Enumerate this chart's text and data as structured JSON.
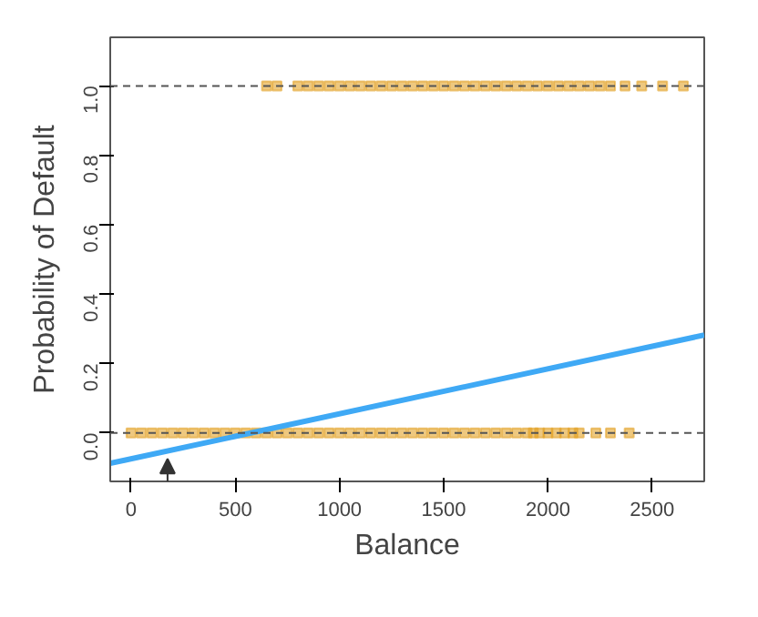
{
  "chart_data": {
    "type": "scatter",
    "xlabel": "Balance",
    "ylabel": "Probability of Default",
    "xlim": [
      -100,
      2750
    ],
    "ylim": [
      -0.14,
      1.14
    ],
    "xticks": [
      0,
      500,
      1000,
      1500,
      2000,
      2500
    ],
    "yticks": [
      {
        "value": 0,
        "label": "0.0"
      },
      {
        "value": 0.2,
        "label": "0.2"
      },
      {
        "value": 0.4,
        "label": "0.4"
      },
      {
        "value": 0.6,
        "label": "0.6"
      },
      {
        "value": 0.8,
        "label": "0.8"
      },
      {
        "value": 1,
        "label": "1.0"
      }
    ],
    "grid": false,
    "series": [
      {
        "color": "#e3a32a",
        "x": [
          0,
          50,
          100,
          150,
          200,
          250,
          300,
          350,
          400,
          450,
          500,
          550,
          600,
          650,
          700,
          750,
          800,
          850,
          900,
          950,
          1000,
          1050,
          1100,
          1150,
          1200,
          1250,
          1300,
          1350,
          1400,
          1450,
          1500,
          1550,
          1600,
          1650,
          1700,
          1750,
          1800,
          1850,
          1900,
          1930,
          1960,
          2000,
          2040,
          2080,
          2120,
          2150,
          2230,
          2300,
          2390
        ],
        "values": [
          0,
          0,
          0,
          0,
          0,
          0,
          0,
          0,
          0,
          0,
          0,
          0,
          0,
          0,
          0,
          0,
          0,
          0,
          0,
          0,
          0,
          0,
          0,
          0,
          0,
          0,
          0,
          0,
          0,
          0,
          0,
          0,
          0,
          0,
          0,
          0,
          0,
          0,
          0,
          0,
          0,
          0,
          0,
          0,
          0,
          0,
          0,
          0,
          0
        ]
      },
      {
        "color": "#e3a32a",
        "x": [
          650,
          700,
          800,
          850,
          900,
          950,
          1000,
          1050,
          1100,
          1150,
          1200,
          1250,
          1300,
          1350,
          1400,
          1450,
          1500,
          1550,
          1600,
          1650,
          1700,
          1750,
          1800,
          1850,
          1900,
          1950,
          2000,
          2050,
          2100,
          2150,
          2200,
          2250,
          2300,
          2370,
          2450,
          2550,
          2650
        ],
        "values": [
          1,
          1,
          1,
          1,
          1,
          1,
          1,
          1,
          1,
          1,
          1,
          1,
          1,
          1,
          1,
          1,
          1,
          1,
          1,
          1,
          1,
          1,
          1,
          1,
          1,
          1,
          1,
          1,
          1,
          1,
          1,
          1,
          1,
          1,
          1,
          1,
          1
        ]
      },
      {
        "type": "line",
        "color": "#3fa9f5",
        "x": [
          -100,
          2750
        ],
        "values": [
          -0.088,
          0.282
        ]
      }
    ],
    "ref_lines": [
      {
        "axis": "y",
        "value": 0,
        "color": "#555555",
        "line_style": "dashed"
      },
      {
        "axis": "y",
        "value": 1,
        "color": "#555555",
        "line_style": "dashed"
      }
    ]
  }
}
